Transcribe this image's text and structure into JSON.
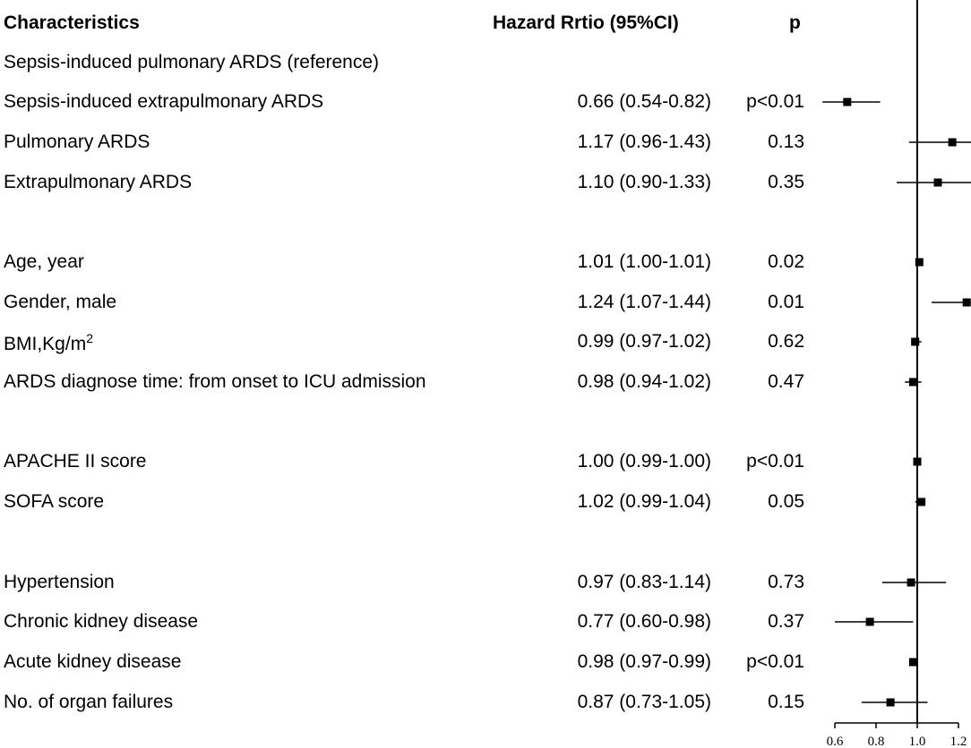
{
  "headers": {
    "characteristics": "Characteristics",
    "hazard_ratio": "Hazard Rrtio (95%CI)",
    "p": "p"
  },
  "reference_row": "Sepsis-induced pulmonary ARDS (reference)",
  "bmi_label": {
    "prefix": "BMI,Kg/m",
    "sup": "2"
  },
  "chart_data": {
    "type": "forest",
    "title": "",
    "xlabel": "",
    "ylabel": "",
    "xlim": [
      0.6,
      1.2
    ],
    "reference_line": 1.0,
    "x_ticks": [
      "0.6",
      "0.8",
      "1.0",
      "1.2"
    ],
    "rows": [
      {
        "label": "Sepsis-induced extrapulmonary ARDS",
        "hr_text": "0.66 (0.54-0.82)",
        "p": "p<0.01",
        "hr": 0.66,
        "lo": 0.54,
        "hi": 0.82
      },
      {
        "label": "Pulmonary ARDS",
        "hr_text": "1.17 (0.96-1.43)",
        "p": "0.13",
        "hr": 1.17,
        "lo": 0.96,
        "hi": 1.43
      },
      {
        "label": "Extrapulmonary ARDS",
        "hr_text": "1.10 (0.90-1.33)",
        "p": "0.35",
        "hr": 1.1,
        "lo": 0.9,
        "hi": 1.33
      },
      {
        "label": "Age, year",
        "hr_text": "1.01 (1.00-1.01)",
        "p": "0.02",
        "hr": 1.01,
        "lo": 1.0,
        "hi": 1.01
      },
      {
        "label": "Gender, male",
        "hr_text": "1.24 (1.07-1.44)",
        "p": "0.01",
        "hr": 1.24,
        "lo": 1.07,
        "hi": 1.44
      },
      {
        "label": "",
        "hr_text": "0.99 (0.97-1.02)",
        "p": "0.62",
        "hr": 0.99,
        "lo": 0.97,
        "hi": 1.02
      },
      {
        "label": "ARDS diagnose time: from onset to ICU admission",
        "hr_text": "0.98 (0.94-1.02)",
        "p": "0.47",
        "hr": 0.98,
        "lo": 0.94,
        "hi": 1.02
      },
      {
        "label": "APACHE II score",
        "hr_text": "1.00 (0.99-1.00)",
        "p": "p<0.01",
        "hr": 1.0,
        "lo": 0.99,
        "hi": 1.0
      },
      {
        "label": "SOFA score",
        "hr_text": "1.02 (0.99-1.04)",
        "p": "0.05",
        "hr": 1.02,
        "lo": 0.99,
        "hi": 1.04
      },
      {
        "label": "Hypertension",
        "hr_text": "0.97 (0.83-1.14)",
        "p": "0.73",
        "hr": 0.97,
        "lo": 0.83,
        "hi": 1.14
      },
      {
        "label": "Chronic kidney disease",
        "hr_text": "0.77 (0.60-0.98)",
        "p": "0.37",
        "hr": 0.77,
        "lo": 0.6,
        "hi": 0.98
      },
      {
        "label": "Acute kidney disease",
        "hr_text": "0.98 (0.97-0.99)",
        "p": "p<0.01",
        "hr": 0.98,
        "lo": 0.97,
        "hi": 0.99
      },
      {
        "label": "No. of organ failures",
        "hr_text": "0.87 (0.73-1.05)",
        "p": "0.15",
        "hr": 0.87,
        "lo": 0.73,
        "hi": 1.05
      }
    ]
  }
}
